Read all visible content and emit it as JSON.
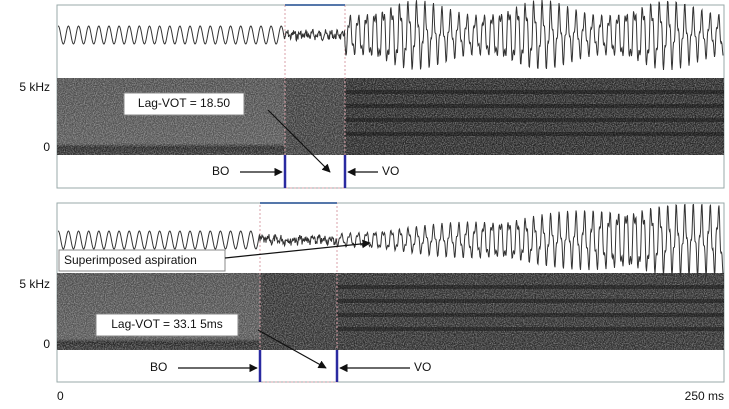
{
  "panels": [
    {
      "freq_top": "5 kHz",
      "freq_bottom": "0",
      "callout": "Lag-VOT = 18.50",
      "burst_onset": "BO",
      "voice_onset": "VO"
    },
    {
      "freq_top": "5 kHz",
      "freq_bottom": "0",
      "aspiration_note": "Superimposed aspiration",
      "callout": "Lag-VOT = 33.1 5ms",
      "burst_onset": "BO",
      "voice_onset": "VO"
    }
  ],
  "time_axis": {
    "start": "0",
    "end": "250 ms"
  }
}
